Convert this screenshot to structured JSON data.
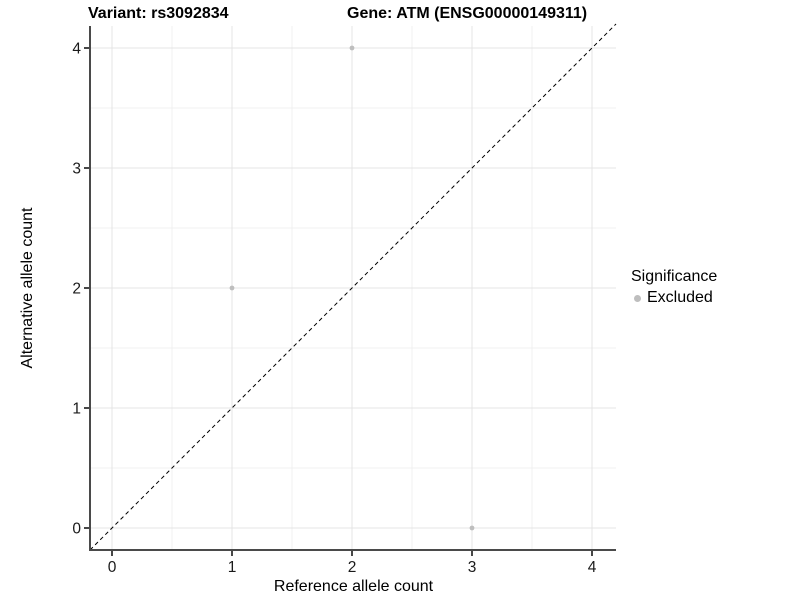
{
  "chart_data": {
    "type": "scatter",
    "titles": {
      "left": "Variant: rs3092834",
      "right": "Gene: ATM (ENSG00000149311)"
    },
    "xlabel": "Reference allele count",
    "ylabel": "Alternative allele count",
    "x_ticks": [
      "0",
      "1",
      "2",
      "3",
      "4"
    ],
    "y_ticks": [
      "0",
      "1",
      "2",
      "3",
      "4"
    ],
    "xlim": [
      -0.183,
      4.2
    ],
    "ylim": [
      -0.183,
      4.2
    ],
    "grid": {
      "major": true,
      "minor": true
    },
    "points": [
      {
        "x": 2,
        "y": 4,
        "significance": "Excluded"
      },
      {
        "x": 1,
        "y": 2,
        "significance": "Excluded"
      },
      {
        "x": 3,
        "y": 0,
        "significance": "Excluded"
      }
    ],
    "identity_line": {
      "equation": "y = x",
      "style": "dashed",
      "color": "#000000"
    },
    "legend": {
      "title": "Significance",
      "position": "right",
      "entries": [
        {
          "label": "Excluded",
          "marker": "circle",
          "color": "#bebebe"
        }
      ]
    }
  },
  "colors": {
    "background": "#ffffff",
    "grid_major": "#e4e4e4",
    "grid_minor": "#f1f1f1",
    "axis_line": "#4a4a4a",
    "tick_mark": "#333333",
    "tick_label": "#1a1a1a",
    "point": "#bebebe"
  }
}
